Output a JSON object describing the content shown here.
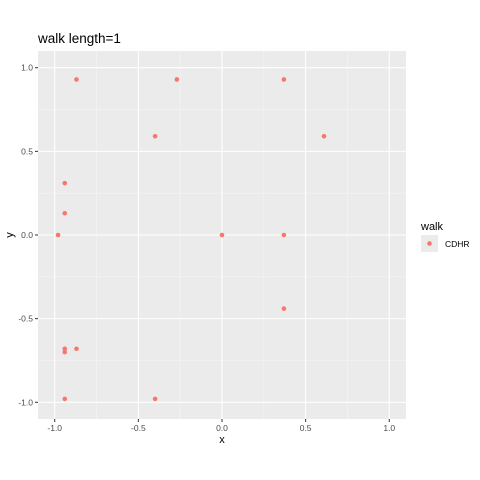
{
  "chart_data": {
    "type": "scatter",
    "title": "walk length=1",
    "xlabel": "x",
    "ylabel": "y",
    "xlim": [
      -1.1,
      1.1
    ],
    "ylim": [
      -1.1,
      1.1
    ],
    "x_ticks": [
      -1.0,
      -0.5,
      0.0,
      0.5,
      1.0
    ],
    "x_tick_labels": [
      "-1.0",
      "-0.5",
      "0.0",
      "0.5",
      "1.0"
    ],
    "y_ticks": [
      -1.0,
      -0.5,
      0.0,
      0.5,
      1.0
    ],
    "y_tick_labels": [
      "-1.0",
      "-0.5",
      "0.0",
      "0.5",
      "1.0"
    ],
    "grid": true,
    "legend": {
      "title": "walk",
      "position": "right",
      "entries": [
        "CDHR"
      ]
    },
    "colors": {
      "panel_background": "#ebebeb",
      "grid_major": "#ffffff",
      "grid_minor": "#f5f5f5",
      "point": "#f8766d",
      "legend_key_background": "#ebebeb"
    },
    "series": [
      {
        "name": "CDHR",
        "points": [
          {
            "x": -0.87,
            "y": 0.93
          },
          {
            "x": -0.27,
            "y": 0.93
          },
          {
            "x": 0.37,
            "y": 0.93
          },
          {
            "x": -0.4,
            "y": 0.59
          },
          {
            "x": 0.61,
            "y": 0.59
          },
          {
            "x": -0.94,
            "y": 0.31
          },
          {
            "x": -0.94,
            "y": 0.13
          },
          {
            "x": -0.98,
            "y": 0.0
          },
          {
            "x": 0.0,
            "y": 0.0
          },
          {
            "x": 0.37,
            "y": 0.0
          },
          {
            "x": 0.37,
            "y": -0.44
          },
          {
            "x": -0.94,
            "y": -0.68
          },
          {
            "x": -0.94,
            "y": -0.7
          },
          {
            "x": -0.87,
            "y": -0.68
          },
          {
            "x": -0.94,
            "y": -0.98
          },
          {
            "x": -0.4,
            "y": -0.98
          }
        ]
      }
    ]
  }
}
